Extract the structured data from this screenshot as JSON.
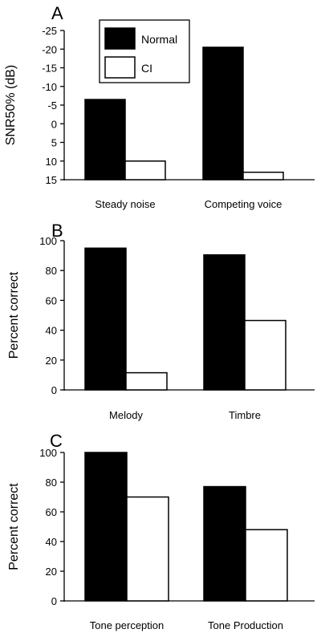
{
  "legend": {
    "entries": [
      {
        "label": "Normal",
        "color": "#000000"
      },
      {
        "label": "CI",
        "color": "#ffffff"
      }
    ],
    "placement": "top-center"
  },
  "chart_data": [
    {
      "panel": "A",
      "type": "bar",
      "ylabel": "SNR50% (dB)",
      "ylim": [
        15,
        -25
      ],
      "y_inverted": true,
      "y_ticks": [
        -25,
        -20,
        -15,
        -10,
        -5,
        0,
        5,
        10,
        15
      ],
      "categories": [
        "Steady noise",
        "Competing voice"
      ],
      "series": [
        {
          "name": "Normal",
          "color": "#000000",
          "values": [
            -6.5,
            -20.5
          ]
        },
        {
          "name": "CI",
          "color": "#ffffff",
          "values": [
            10,
            13
          ]
        }
      ],
      "grid": false
    },
    {
      "panel": "B",
      "type": "bar",
      "ylabel": "Percent correct",
      "ylim": [
        0,
        100
      ],
      "y_ticks": [
        0,
        20,
        40,
        60,
        80,
        100
      ],
      "categories": [
        "Melody",
        "Timbre"
      ],
      "series": [
        {
          "name": "Normal",
          "color": "#000000",
          "values": [
            95,
            90.5
          ]
        },
        {
          "name": "CI",
          "color": "#ffffff",
          "values": [
            11.5,
            46.5
          ]
        }
      ],
      "grid": false
    },
    {
      "panel": "C",
      "type": "bar",
      "ylabel": "Percent correct",
      "ylim": [
        0,
        100
      ],
      "y_ticks": [
        0,
        20,
        40,
        60,
        80,
        100
      ],
      "categories": [
        "Tone perception",
        "Tone Production"
      ],
      "series": [
        {
          "name": "Normal",
          "color": "#000000",
          "values": [
            100,
            77
          ]
        },
        {
          "name": "CI",
          "color": "#ffffff",
          "values": [
            70,
            48
          ]
        }
      ],
      "grid": false
    }
  ]
}
